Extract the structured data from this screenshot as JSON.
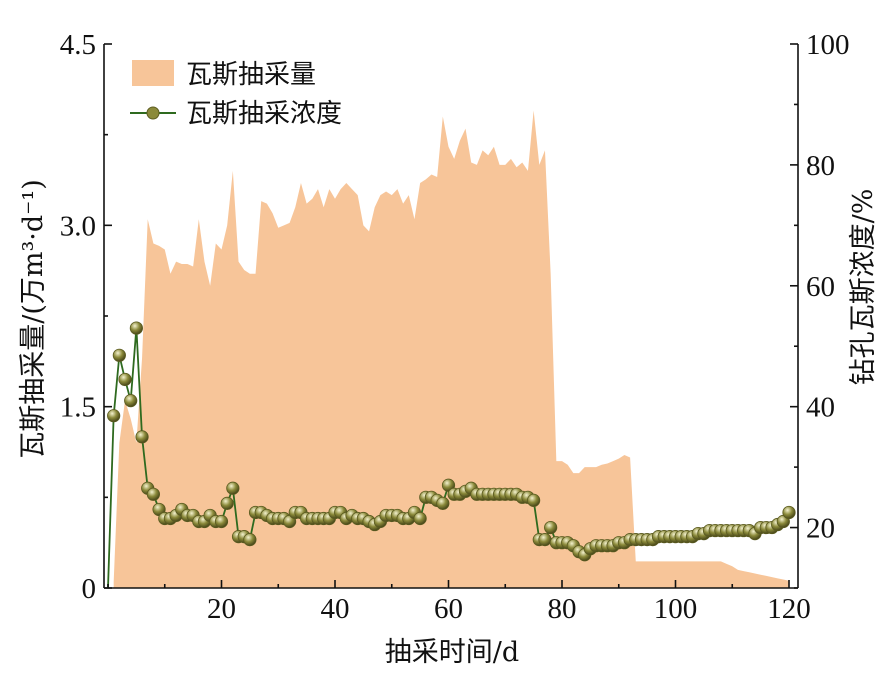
{
  "chart_data": {
    "type": "area+line",
    "title": "",
    "xlabel": "抽采时间/d",
    "ylabel_left": "瓦斯抽采量/(万m³·d⁻¹)",
    "ylabel_right": "钻孔瓦斯浓度/%",
    "xlim": [
      0,
      122
    ],
    "ylim_left": [
      0,
      4.5
    ],
    "ylim_right": [
      10,
      100
    ],
    "x_ticks": [
      20,
      40,
      60,
      80,
      100,
      120
    ],
    "y_left_ticks": [
      0,
      1.5,
      3.0,
      4.5
    ],
    "y_left_tick_labels": [
      "0",
      "1.5",
      "3.0",
      "4.5"
    ],
    "y_right_ticks": [
      20,
      40,
      60,
      80,
      100
    ],
    "grid": false,
    "legend_position": "top-left",
    "colors": {
      "area": "#f7c599",
      "line": "#2e6a1f",
      "marker": "#8b8a3a"
    },
    "series": [
      {
        "name": "瓦斯抽采量",
        "kind": "area",
        "axis": "left",
        "x": [
          1,
          2,
          3,
          4,
          5,
          6,
          7,
          8,
          9,
          10,
          11,
          12,
          13,
          14,
          15,
          16,
          17,
          18,
          19,
          20,
          21,
          22,
          23,
          24,
          25,
          26,
          27,
          28,
          29,
          30,
          31,
          32,
          33,
          34,
          35,
          36,
          37,
          38,
          39,
          40,
          41,
          42,
          43,
          44,
          45,
          46,
          47,
          48,
          49,
          50,
          51,
          52,
          53,
          54,
          55,
          56,
          57,
          58,
          59,
          60,
          61,
          62,
          63,
          64,
          65,
          66,
          67,
          68,
          69,
          70,
          71,
          72,
          73,
          74,
          75,
          76,
          77,
          78,
          79,
          80,
          81,
          82,
          83,
          84,
          85,
          86,
          87,
          88,
          89,
          90,
          91,
          92,
          93,
          94,
          95,
          96,
          97,
          98,
          99,
          100,
          101,
          102,
          103,
          104,
          105,
          106,
          107,
          108,
          109,
          110,
          111,
          112,
          113,
          114,
          115,
          116,
          117,
          118,
          119,
          120
        ],
        "values": [
          0.05,
          1.2,
          1.55,
          1.4,
          1.2,
          1.9,
          3.05,
          2.85,
          2.83,
          2.8,
          2.6,
          2.7,
          2.68,
          2.68,
          2.66,
          3.05,
          2.7,
          2.5,
          2.85,
          2.8,
          3.0,
          3.45,
          2.7,
          2.63,
          2.6,
          2.6,
          3.2,
          3.18,
          3.1,
          2.98,
          3.0,
          3.02,
          3.15,
          3.35,
          3.18,
          3.22,
          3.3,
          3.15,
          3.3,
          3.22,
          3.3,
          3.35,
          3.3,
          3.25,
          3.0,
          2.95,
          3.15,
          3.25,
          3.28,
          3.25,
          3.3,
          3.18,
          3.25,
          3.05,
          3.35,
          3.38,
          3.42,
          3.4,
          3.9,
          3.65,
          3.55,
          3.7,
          3.8,
          3.52,
          3.5,
          3.62,
          3.58,
          3.65,
          3.5,
          3.5,
          3.55,
          3.48,
          3.52,
          3.45,
          3.95,
          3.5,
          3.62,
          2.6,
          1.05,
          1.05,
          1.02,
          0.95,
          0.95,
          1.0,
          1.0,
          1.0,
          1.02,
          1.03,
          1.05,
          1.07,
          1.1,
          1.08,
          0.22,
          0.22,
          0.22,
          0.22,
          0.22,
          0.22,
          0.22,
          0.22,
          0.22,
          0.22,
          0.22,
          0.22,
          0.22,
          0.22,
          0.22,
          0.22,
          0.2,
          0.18,
          0.15,
          0.14,
          0.13,
          0.12,
          0.11,
          0.1,
          0.09,
          0.08,
          0.07,
          0.06
        ]
      },
      {
        "name": "瓦斯抽采浓度",
        "kind": "line",
        "axis": "right",
        "x": [
          0,
          1,
          2,
          3,
          4,
          5,
          6,
          7,
          8,
          9,
          10,
          11,
          12,
          13,
          14,
          15,
          16,
          17,
          18,
          19,
          20,
          21,
          22,
          23,
          24,
          25,
          26,
          27,
          28,
          29,
          30,
          31,
          32,
          33,
          34,
          35,
          36,
          37,
          38,
          39,
          40,
          41,
          42,
          43,
          44,
          45,
          46,
          47,
          48,
          49,
          50,
          51,
          52,
          53,
          54,
          55,
          56,
          57,
          58,
          59,
          60,
          61,
          62,
          63,
          64,
          65,
          66,
          67,
          68,
          69,
          70,
          71,
          72,
          73,
          74,
          75,
          76,
          77,
          78,
          79,
          80,
          81,
          82,
          83,
          84,
          85,
          86,
          87,
          88,
          89,
          90,
          91,
          92,
          93,
          94,
          95,
          96,
          97,
          98,
          99,
          100,
          101,
          102,
          103,
          104,
          105,
          106,
          107,
          108,
          109,
          110,
          111,
          112,
          113,
          114,
          115,
          116,
          117,
          118,
          119,
          120
        ],
        "values": [
          10,
          38.5,
          48.5,
          44.5,
          41,
          53,
          35,
          26.5,
          25.5,
          23,
          21.5,
          21.5,
          22,
          23,
          22,
          22,
          21,
          21,
          22,
          21,
          21,
          24,
          26.5,
          18.5,
          18.5,
          18,
          22.5,
          22.5,
          22,
          21.5,
          21.5,
          21.5,
          21,
          22.5,
          22.5,
          21.5,
          21.5,
          21.5,
          21.5,
          21.5,
          22.5,
          22.5,
          21.5,
          22,
          21.5,
          21.5,
          21,
          20.5,
          21,
          22,
          22,
          22,
          21.5,
          21.5,
          22.5,
          21.5,
          25,
          25,
          24.5,
          24,
          27,
          25.5,
          25.5,
          26,
          26.5,
          25.5,
          25.5,
          25.5,
          25.5,
          25.5,
          25.5,
          25.5,
          25.5,
          25,
          25,
          24.5,
          18,
          18,
          20,
          17.5,
          17.5,
          17.5,
          17,
          16,
          15.5,
          16.5,
          17,
          17,
          17,
          17,
          17.5,
          17.5,
          18,
          18,
          18,
          18,
          18,
          18.5,
          18.5,
          18.5,
          18.5,
          18.5,
          18.5,
          18.5,
          19,
          19,
          19.5,
          19.5,
          19.5,
          19.5,
          19.5,
          19.5,
          19.5,
          19.5,
          19,
          20,
          20,
          20,
          20.5,
          21,
          22.5
        ]
      }
    ]
  }
}
